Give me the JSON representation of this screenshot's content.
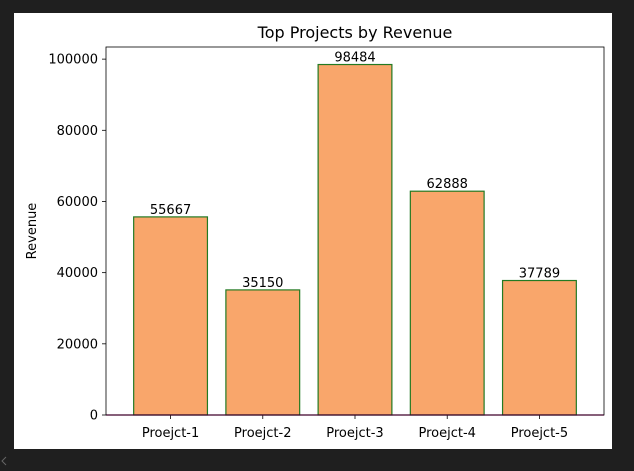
{
  "chart_data": {
    "type": "bar",
    "title": "Top Projects by Revenue",
    "xlabel": "",
    "ylabel": "Revenue",
    "categories": [
      "Proejct-1",
      "Proejct-2",
      "Proejct-3",
      "Proejct-4",
      "Proejct-5"
    ],
    "values": [
      55667,
      35150,
      98484,
      62888,
      37789
    ],
    "data_labels": [
      "55667",
      "35150",
      "98484",
      "62888",
      "37789"
    ],
    "ylim": [
      0,
      103408
    ],
    "yticks": [
      0,
      20000,
      40000,
      60000,
      80000,
      100000
    ],
    "ytick_labels": [
      "0",
      "20000",
      "40000",
      "60000",
      "80000",
      "100000"
    ],
    "grid": false,
    "legend": "none",
    "colors": {
      "bar_fill": "#f9a66b",
      "bar_edge": "#237a23",
      "baseline": "#b0007a",
      "axes": "#000000",
      "page_background": "#1f1f1f",
      "figure_background": "#ffffff"
    }
  }
}
